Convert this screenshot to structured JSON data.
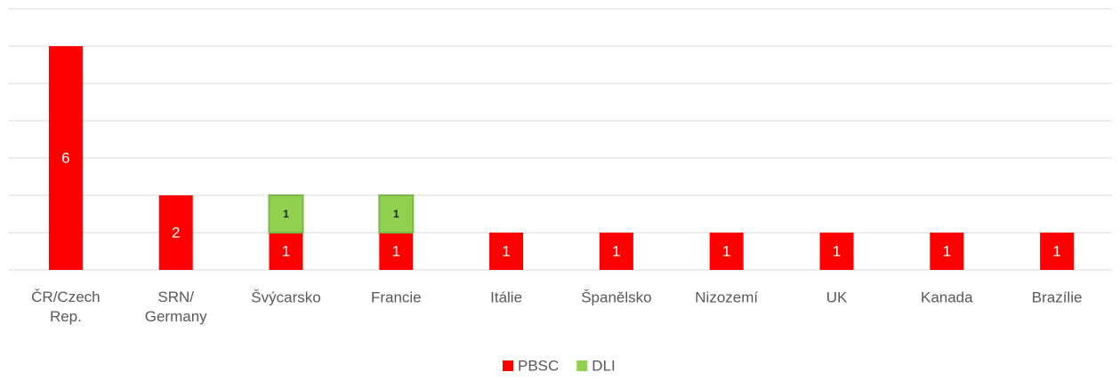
{
  "chart_data": {
    "type": "stacked_bar",
    "categories": [
      "ČR/Czech Rep.",
      "SRN/ Germany",
      "Švýcarsko",
      "Francie",
      "Itálie",
      "Španělsko",
      "Nizozemí",
      "UK",
      "Kanada",
      "Brazílie"
    ],
    "series": [
      {
        "name": "PBSC",
        "color": "#ff0000",
        "values": [
          6,
          2,
          1,
          1,
          1,
          1,
          1,
          1,
          1,
          1
        ]
      },
      {
        "name": "DLI",
        "color": "#92d050",
        "values": [
          null,
          null,
          1,
          1,
          null,
          null,
          null,
          null,
          null,
          null
        ]
      }
    ],
    "ylim": [
      0,
      7
    ],
    "yticks": [
      0,
      1,
      2,
      3,
      4,
      5,
      6,
      7
    ],
    "grid": true,
    "legend": "bottom"
  }
}
